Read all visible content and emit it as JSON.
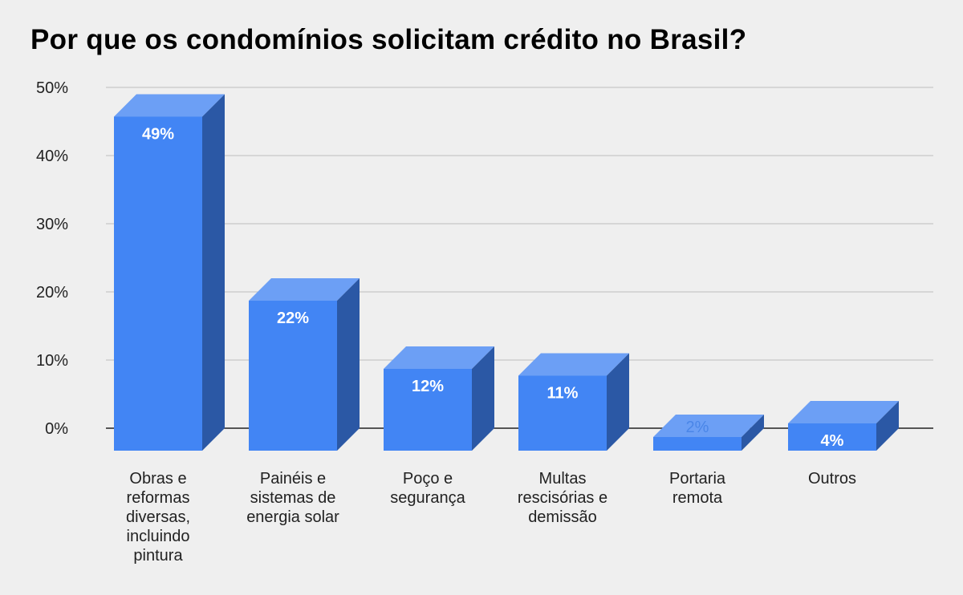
{
  "chart_data": {
    "type": "bar",
    "title": "Por que os condomínios solicitam crédito no Brasil?",
    "categories": [
      "Obras e reformas diversas, incluindo pintura",
      "Painéis e sistemas de energia solar",
      "Poço e segurança",
      "Multas rescisórias e demissão",
      "Portaria remota",
      "Outros"
    ],
    "category_lines": [
      [
        "Obras e",
        "reformas",
        "diversas,",
        "incluindo",
        "pintura"
      ],
      [
        "Painéis e",
        "sistemas de",
        "energia solar"
      ],
      [
        "Poço e",
        "segurança"
      ],
      [
        "Multas",
        "rescisórias e",
        "demissão"
      ],
      [
        "Portaria",
        "remota"
      ],
      [
        "Outros"
      ]
    ],
    "values": [
      49,
      22,
      12,
      11,
      2,
      4
    ],
    "data_labels": [
      "49%",
      "22%",
      "12%",
      "11%",
      "2%",
      "4%"
    ],
    "yticks": [
      "0%",
      "10%",
      "20%",
      "30%",
      "40%",
      "50%"
    ],
    "ylim": [
      0,
      50
    ],
    "grid": true,
    "legend": "none",
    "style": "3d-bar",
    "colors": {
      "front": "#4285f4",
      "top": "#6c9ff5",
      "side": "#2b58a5",
      "grid": "#bdbdbd",
      "baseline": "#222222"
    }
  }
}
